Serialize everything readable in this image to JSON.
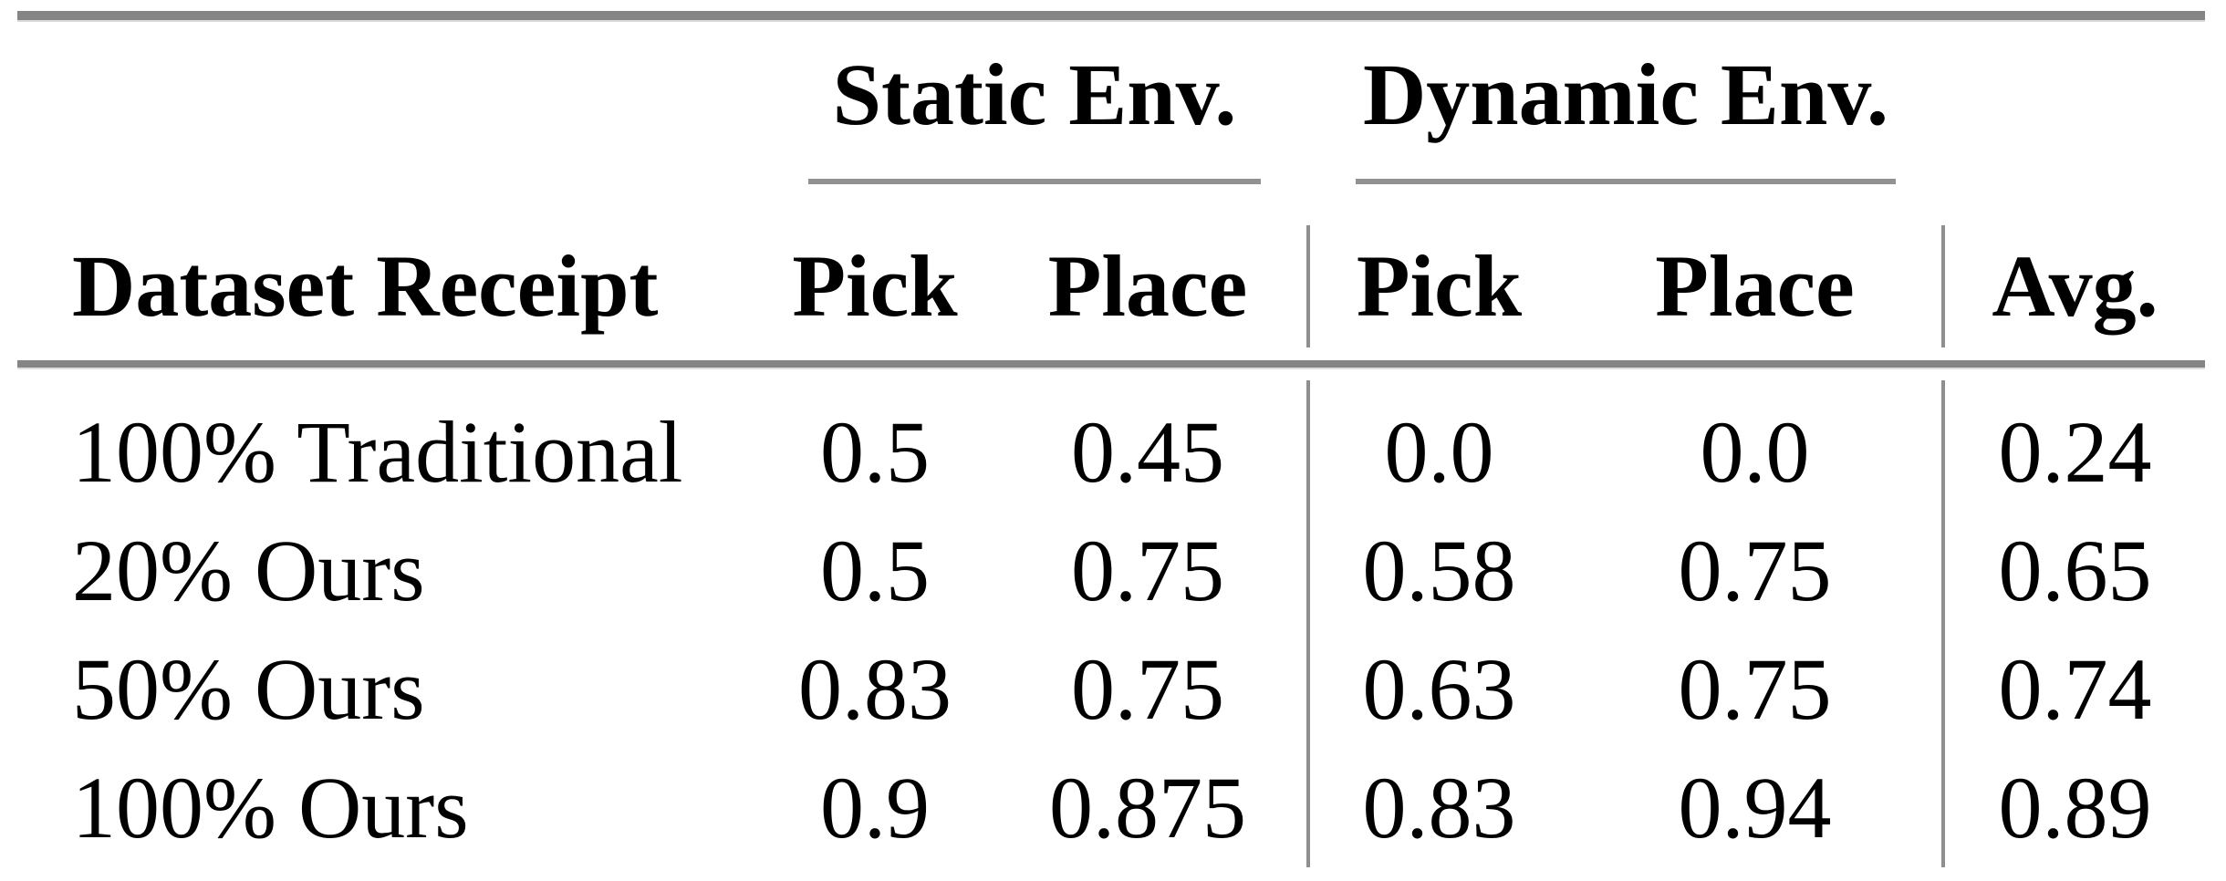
{
  "table": {
    "group_headers": {
      "static": "Static Env.",
      "dynamic": "Dynamic Env."
    },
    "column_headers": {
      "dataset": "Dataset Receipt",
      "static_pick": "Pick",
      "static_place": "Place",
      "dynamic_pick": "Pick",
      "dynamic_place": "Place",
      "avg": "Avg."
    },
    "rows": [
      {
        "label": "100% Traditional",
        "static_pick": "0.5",
        "static_place": "0.45",
        "dynamic_pick": "0.0",
        "dynamic_place": "0.0",
        "avg": "0.24"
      },
      {
        "label": "20% Ours",
        "static_pick": "0.5",
        "static_place": "0.75",
        "dynamic_pick": "0.58",
        "dynamic_place": "0.75",
        "avg": "0.65"
      },
      {
        "label": "50% Ours",
        "static_pick": "0.83",
        "static_place": "0.75",
        "dynamic_pick": "0.63",
        "dynamic_place": "0.75",
        "avg": "0.74"
      },
      {
        "label": "100% Ours",
        "static_pick": "0.9",
        "static_place": "0.875",
        "dynamic_pick": "0.83",
        "dynamic_place": "0.94",
        "avg": "0.89"
      }
    ],
    "colors": {
      "text": "#000000",
      "thick_rule": "#858585",
      "thin_rule": "#919191",
      "background": "#ffffff"
    }
  }
}
